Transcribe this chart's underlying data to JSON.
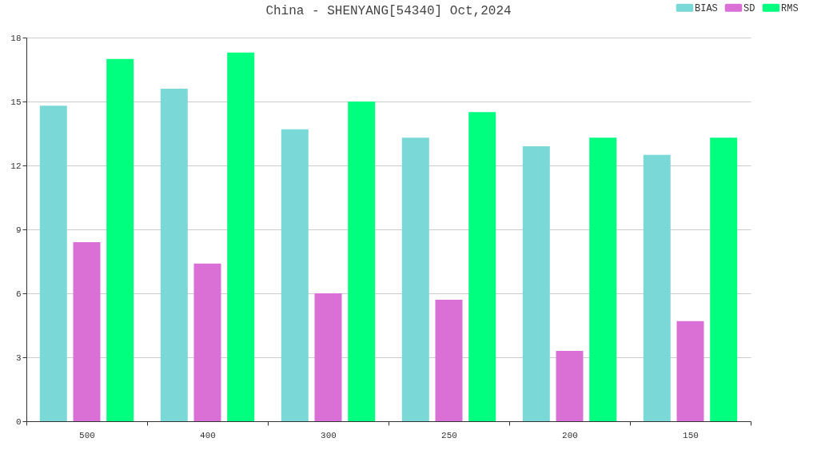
{
  "chart_data": {
    "type": "bar",
    "title": "China - SHENYANG[54340] Oct,2024",
    "categories": [
      "500",
      "400",
      "300",
      "250",
      "200",
      "150"
    ],
    "series": [
      {
        "name": "BIAS",
        "color": "#7ad9d6",
        "values": [
          14.8,
          15.6,
          13.7,
          13.3,
          12.9,
          12.5
        ]
      },
      {
        "name": "SD",
        "color": "#da70d6",
        "values": [
          8.4,
          7.4,
          6.0,
          5.7,
          3.3,
          4.7
        ]
      },
      {
        "name": "RMS",
        "color": "#00ff7f",
        "values": [
          17.0,
          17.3,
          15.0,
          14.5,
          13.3,
          13.3
        ]
      }
    ],
    "ylim": [
      0,
      18
    ],
    "yticks": [
      0,
      3,
      6,
      9,
      12,
      15,
      18
    ],
    "grid": "y",
    "legend": "top right"
  }
}
